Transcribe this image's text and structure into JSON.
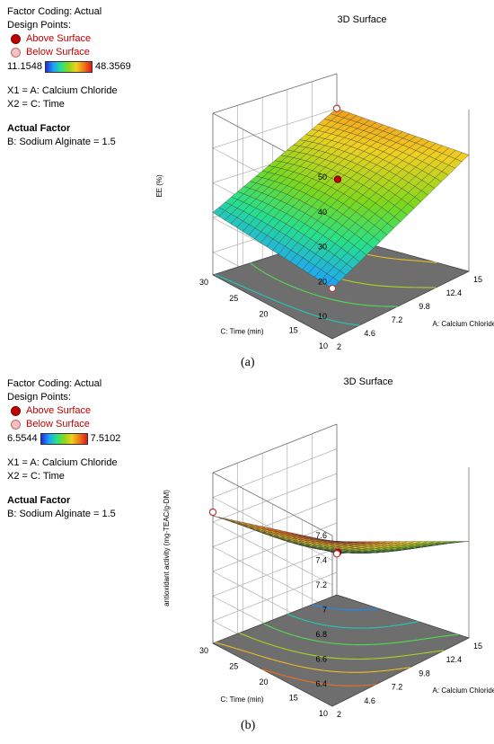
{
  "panels": [
    {
      "caption": "(a)",
      "factor_coding": "Factor Coding: Actual",
      "design_points_label": "Design Points:",
      "above_label": "Above Surface",
      "below_label": "Below Surface",
      "colorbar_min": "11.1548",
      "colorbar_max": "48.3569",
      "x1_label": "X1 = A: Calcium Chloride",
      "x2_label": "X2 = C: Time",
      "actual_factor_title": "Actual Factor",
      "actual_factor_value": "B: Sodium Alginate = 1.5",
      "colors": {
        "low": "#1f2fd0",
        "high": "#e01818",
        "above": "#c00000",
        "below": "#f6c0c0"
      }
    },
    {
      "caption": "(b)",
      "factor_coding": "Factor Coding: Actual",
      "design_points_label": "Design Points:",
      "above_label": "Above Surface",
      "below_label": "Below Surface",
      "colorbar_min": "6.5544",
      "colorbar_max": "7.5102",
      "x1_label": "X1 = A: Calcium Chloride",
      "x2_label": "X2 = C: Time",
      "actual_factor_title": "Actual Factor",
      "actual_factor_value": "B: Sodium Alginate = 1.5",
      "colors": {
        "low": "#1f2fd0",
        "high": "#e01818",
        "above": "#c00000",
        "below": "#f6c0c0"
      }
    }
  ],
  "chart_data": [
    {
      "type": "surface3d",
      "title": "3D Surface",
      "xlabel": "A: Calcium Chloride (%)",
      "ylabel": "C: Time (min)",
      "zlabel": "EE  (%)",
      "x_ticks": [
        "2",
        "4.6",
        "7.2",
        "9.8",
        "12.4",
        "15"
      ],
      "y_ticks": [
        "10",
        "15",
        "20",
        "25",
        "30"
      ],
      "z_ticks": [
        "10",
        "20",
        "30",
        "40",
        "50"
      ],
      "xlim": [
        2,
        15
      ],
      "ylim": [
        10,
        30
      ],
      "zlim": [
        10,
        50
      ],
      "color_range": [
        11.1548,
        48.3569
      ],
      "corner_values": {
        "x2_y10": 18,
        "x15_y10": 37,
        "x2_y30": 21.5,
        "x15_y30": 40
      },
      "center_value": 32,
      "design_points": [
        {
          "x": 15,
          "y": 30,
          "z": 40,
          "position": "below"
        },
        {
          "x": 8.5,
          "y": 20,
          "z": 32.5,
          "position": "above"
        },
        {
          "x": 2,
          "y": 10,
          "z": 18,
          "position": "below"
        }
      ]
    },
    {
      "type": "surface3d",
      "title": "3D Surface",
      "xlabel": "A: Calcium Chloride (%)",
      "ylabel": "C: Time (min)",
      "zlabel": "antioxidant activity (mg-TEAC/g-DM)",
      "x_ticks": [
        "2",
        "4.6",
        "7.2",
        "9.8",
        "12.4",
        "15"
      ],
      "y_ticks": [
        "10",
        "15",
        "20",
        "25",
        "30"
      ],
      "z_ticks": [
        "6.4",
        "6.6",
        "6.8",
        "7",
        "7.2",
        "7.4",
        "7.6"
      ],
      "xlim": [
        2,
        15
      ],
      "ylim": [
        10,
        30
      ],
      "zlim": [
        6.4,
        7.6
      ],
      "color_range": [
        6.5544,
        7.5102
      ],
      "corner_values": {
        "x2_y10": 7.55,
        "x15_y10": 7.0,
        "x2_y30": 7.25,
        "x15_y30": 6.55
      },
      "center_value": 6.98,
      "design_points": [
        {
          "x": 2,
          "y": 30,
          "z": 7.28,
          "position": "below"
        },
        {
          "x": 8.5,
          "y": 20,
          "z": 6.98,
          "position": "below"
        },
        {
          "x": 8.5,
          "y": 20,
          "z": 6.97,
          "position": "above"
        },
        {
          "x": 15,
          "y": 30,
          "z": 6.55,
          "position": "below"
        }
      ]
    }
  ]
}
